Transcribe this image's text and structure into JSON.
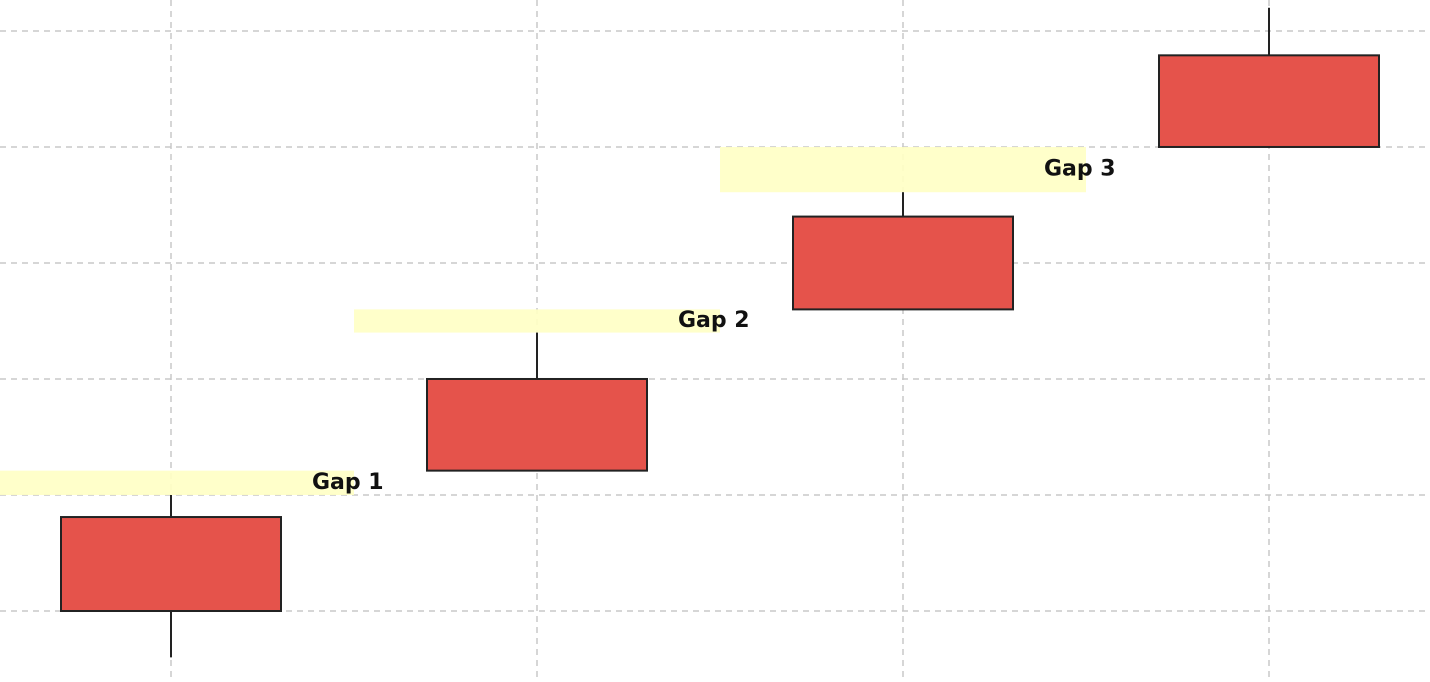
{
  "chart_data": {
    "type": "candlestick",
    "categories": [
      null,
      null,
      null,
      null
    ],
    "open": [
      0.81,
      2.0,
      3.4,
      4.79
    ],
    "high": [
      1.0,
      2.4,
      3.61,
      5.2
    ],
    "low": [
      -0.4,
      1.21,
      2.6,
      4.0
    ],
    "close": [
      0,
      1.21,
      2.6,
      4.0
    ],
    "color": "#e5534b",
    "gaps": [
      {
        "label": "Gap 1",
        "low": 1.0,
        "high": 1.21
      },
      {
        "label": "Gap 2",
        "low": 2.4,
        "high": 2.6
      },
      {
        "label": "Gap 3",
        "low": 3.61,
        "high": 4.0
      }
    ],
    "gap_color": "#ffffc4",
    "ylim": [
      -0.612,
      5.267
    ],
    "yticks": [
      0,
      1,
      2,
      3,
      4,
      5
    ],
    "grid": true
  }
}
